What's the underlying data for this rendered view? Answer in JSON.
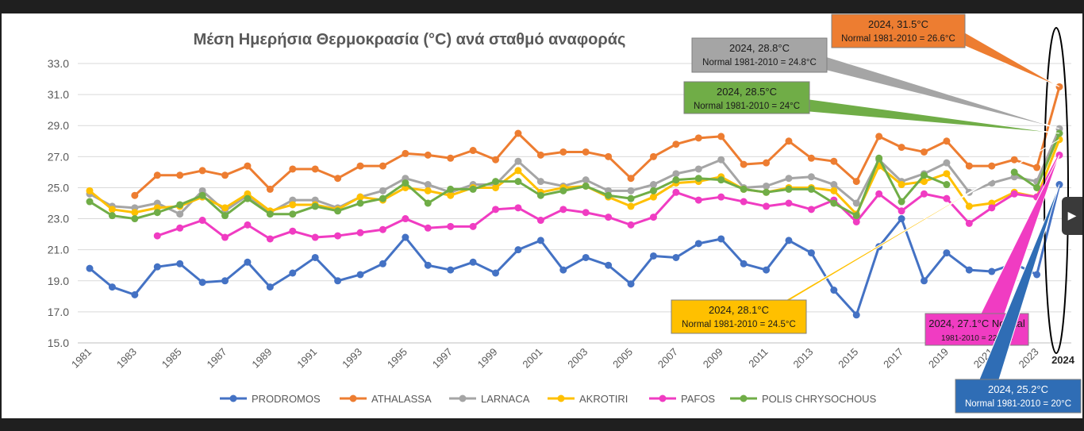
{
  "chart_data": {
    "type": "line",
    "title": "Μέση Ημερήσια Θερμοκρασία (°C) ανά σταθμό αναφοράς",
    "xlabel": "",
    "ylabel": "",
    "ylim": [
      15,
      33
    ],
    "yticks": [
      "15.0",
      "17.0",
      "19.0",
      "21.0",
      "23.0",
      "25.0",
      "27.0",
      "29.0",
      "31.0",
      "33.0"
    ],
    "xticks": [
      "1981",
      "1983",
      "1985",
      "1987",
      "1989",
      "1991",
      "1993",
      "1995",
      "1997",
      "1999",
      "2001",
      "2003",
      "2005",
      "2007",
      "2009",
      "2011",
      "2013",
      "2015",
      "2017",
      "2019",
      "2021",
      "2023",
      "2024"
    ],
    "grid": true,
    "legend_position": "bottom",
    "x": [
      1981,
      1982,
      1983,
      1984,
      1985,
      1986,
      1987,
      1988,
      1989,
      1990,
      1991,
      1992,
      1993,
      1994,
      1995,
      1996,
      1997,
      1998,
      1999,
      2000,
      2001,
      2002,
      2003,
      2004,
      2005,
      2006,
      2007,
      2008,
      2009,
      2010,
      2011,
      2012,
      2013,
      2014,
      2015,
      2016,
      2017,
      2018,
      2019,
      2020,
      2021,
      2022,
      2023,
      2024
    ],
    "series": [
      {
        "name": "PRODROMOS",
        "color": "#4472C4",
        "values": [
          19.8,
          18.6,
          18.1,
          19.9,
          20.1,
          18.9,
          19.0,
          20.2,
          18.6,
          19.5,
          20.5,
          19.0,
          19.4,
          20.1,
          21.8,
          20.0,
          19.7,
          20.2,
          19.5,
          21.0,
          21.6,
          19.7,
          20.5,
          20.0,
          18.8,
          20.6,
          20.5,
          21.4,
          21.7,
          20.1,
          19.7,
          21.6,
          20.8,
          18.4,
          16.8,
          21.2,
          23.0,
          19.0,
          20.8,
          19.7,
          19.6,
          20.1,
          19.4,
          25.2
        ]
      },
      {
        "name": "ATHALASSA",
        "color": "#ED7D31",
        "values": [
          null,
          null,
          24.5,
          25.8,
          25.8,
          26.1,
          25.8,
          26.4,
          24.9,
          26.2,
          26.2,
          25.6,
          26.4,
          26.4,
          27.2,
          27.1,
          26.9,
          27.4,
          26.8,
          28.5,
          27.1,
          27.3,
          27.3,
          27.0,
          25.6,
          27.0,
          27.8,
          28.2,
          28.3,
          26.5,
          26.6,
          28.0,
          26.9,
          26.7,
          25.4,
          28.3,
          27.6,
          27.3,
          28.0,
          26.4,
          26.4,
          26.8,
          26.3,
          31.5
        ]
      },
      {
        "name": "LARNACA",
        "color": "#A5A5A5",
        "values": [
          24.6,
          23.8,
          23.7,
          24.0,
          23.3,
          24.8,
          23.5,
          24.5,
          23.4,
          24.2,
          24.2,
          23.7,
          24.4,
          24.8,
          25.6,
          25.2,
          24.7,
          25.2,
          25.2,
          26.7,
          25.4,
          25.1,
          25.5,
          24.8,
          24.8,
          25.2,
          25.9,
          26.2,
          26.8,
          25.0,
          25.1,
          25.6,
          25.7,
          25.2,
          24.0,
          26.8,
          25.4,
          25.9,
          26.6,
          24.7,
          25.3,
          25.7,
          25.4,
          28.8
        ]
      },
      {
        "name": "AKROTIRI",
        "color": "#FFC000",
        "values": [
          24.8,
          23.6,
          23.4,
          23.7,
          23.8,
          24.4,
          23.7,
          24.6,
          23.5,
          23.9,
          23.9,
          23.6,
          24.4,
          24.2,
          25.0,
          24.8,
          24.5,
          25.0,
          25.0,
          26.1,
          24.7,
          25.0,
          25.1,
          24.4,
          23.8,
          24.4,
          25.3,
          25.4,
          25.7,
          24.9,
          24.7,
          25.0,
          25.0,
          24.8,
          23.3,
          26.4,
          25.2,
          25.4,
          25.9,
          23.8,
          24.0,
          24.7,
          24.4,
          28.1
        ]
      },
      {
        "name": "PAFOS",
        "color": "#F03CC2",
        "values": [
          null,
          null,
          null,
          21.9,
          22.4,
          22.9,
          21.8,
          22.6,
          21.7,
          22.2,
          21.8,
          21.9,
          22.1,
          22.3,
          23.0,
          22.4,
          22.5,
          22.5,
          23.6,
          23.7,
          22.9,
          23.6,
          23.4,
          23.1,
          22.6,
          23.1,
          24.7,
          24.2,
          24.4,
          24.1,
          23.8,
          24.0,
          23.6,
          24.2,
          22.8,
          24.6,
          23.5,
          24.6,
          24.3,
          22.7,
          23.7,
          24.6,
          24.4,
          27.1
        ]
      },
      {
        "name": "POLIS CHRYSOCHOUS",
        "color": "#70AD47",
        "values": [
          24.1,
          23.2,
          23.0,
          23.4,
          23.9,
          24.5,
          23.2,
          24.3,
          23.3,
          23.3,
          23.8,
          23.5,
          24.0,
          24.3,
          25.3,
          24.0,
          24.9,
          24.9,
          25.4,
          25.4,
          24.5,
          24.8,
          25.1,
          24.5,
          24.3,
          24.8,
          25.5,
          25.6,
          25.5,
          24.9,
          24.7,
          24.9,
          24.9,
          24.0,
          23.2,
          26.9,
          24.1,
          25.8,
          25.2,
          null,
          null,
          26.0,
          25.0,
          28.5
        ]
      }
    ],
    "annotations": [
      {
        "series": "ATHALASSA",
        "line1": "2024, 31.5°C",
        "line2": "Normal 1981-2010 = 26.6°C",
        "bg": "#ED7D31",
        "text_color": "#1a1a1a"
      },
      {
        "series": "LARNACA",
        "line1": "2024, 28.8°C",
        "line2": "Normal 1981-2010 = 24.8°C",
        "bg": "#A5A5A5",
        "text_color": "#1a1a1a"
      },
      {
        "series": "POLIS CHRYSOCHOUS",
        "line1": "2024, 28.5°C",
        "line2": "Normal 1981-2010 = 24°C",
        "bg": "#70AD47",
        "text_color": "#1a1a1a"
      },
      {
        "series": "AKROTIRI",
        "line1": "2024, 28.1°C",
        "line2": "Normal 1981-2010 = 24.5°C",
        "bg": "#FFC000",
        "text_color": "#1a1a1a"
      },
      {
        "series": "PAFOS",
        "line1": "2024, 27.1°C Normal",
        "line2": "1981-2010 = 22.9°C",
        "bg": "#F03CC2",
        "text_color": "#1a1a1a"
      },
      {
        "series": "PRODROMOS",
        "line1": "2024, 25.2°C",
        "line2": "Normal 1981-2010 = 20°C",
        "bg": "#2F6DB5",
        "text_color": "#ffffff"
      }
    ]
  }
}
